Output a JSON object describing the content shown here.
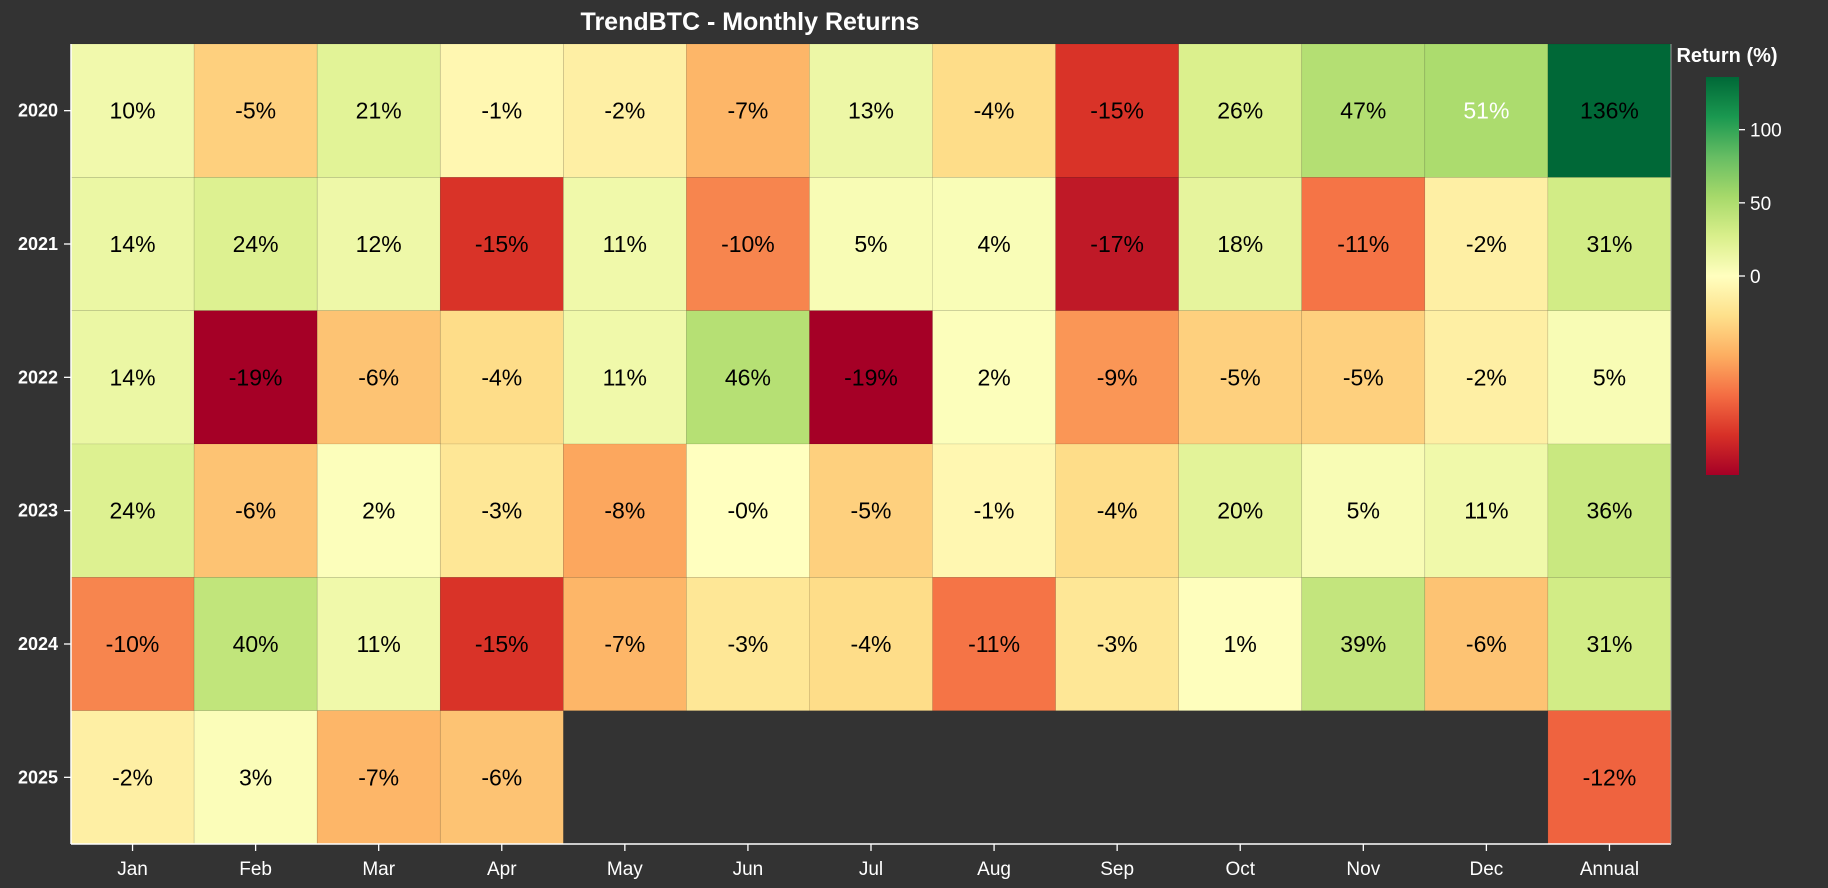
{
  "chart_data": {
    "type": "heatmap",
    "title": "TrendBTC - Monthly Returns",
    "rows": [
      "2020",
      "2021",
      "2022",
      "2023",
      "2024",
      "2025"
    ],
    "columns": [
      "Jan",
      "Feb",
      "Mar",
      "Apr",
      "May",
      "Jun",
      "Jul",
      "Aug",
      "Sep",
      "Oct",
      "Nov",
      "Dec",
      "Annual"
    ],
    "values": [
      [
        10,
        -5,
        21,
        -1,
        -2,
        -7,
        13,
        -4,
        -15,
        26,
        47,
        51,
        136
      ],
      [
        14,
        24,
        12,
        -15,
        11,
        -10,
        5,
        4,
        -17,
        18,
        -11,
        -2,
        31
      ],
      [
        14,
        -19,
        -6,
        -4,
        11,
        46,
        -19,
        2,
        -9,
        -5,
        -5,
        -2,
        5
      ],
      [
        24,
        -6,
        2,
        -3,
        -8,
        0,
        -5,
        -1,
        -4,
        20,
        5,
        11,
        36
      ],
      [
        -10,
        40,
        11,
        -15,
        -7,
        -3,
        -4,
        -11,
        -3,
        1,
        39,
        -6,
        31
      ],
      [
        -2,
        3,
        -7,
        -6,
        null,
        null,
        null,
        null,
        null,
        null,
        null,
        null,
        -12
      ]
    ],
    "labels": [
      [
        "10%",
        "-5%",
        "21%",
        "-1%",
        "-2%",
        "-7%",
        "13%",
        "-4%",
        "-15%",
        "26%",
        "47%",
        "51%",
        "136%"
      ],
      [
        "14%",
        "24%",
        "12%",
        "-15%",
        "11%",
        "-10%",
        "5%",
        "4%",
        "-17%",
        "18%",
        "-11%",
        "-2%",
        "31%"
      ],
      [
        "14%",
        "-19%",
        "-6%",
        "-4%",
        "11%",
        "46%",
        "-19%",
        "2%",
        "-9%",
        "-5%",
        "-5%",
        "-2%",
        "5%"
      ],
      [
        "24%",
        "-6%",
        "2%",
        "-3%",
        "-8%",
        "-0%",
        "-5%",
        "-1%",
        "-4%",
        "20%",
        "5%",
        "11%",
        "36%"
      ],
      [
        "-10%",
        "40%",
        "11%",
        "-15%",
        "-7%",
        "-3%",
        "-4%",
        "-11%",
        "-3%",
        "1%",
        "39%",
        "-6%",
        "31%"
      ],
      [
        "-2%",
        "3%",
        "-7%",
        "-6%",
        null,
        null,
        null,
        null,
        null,
        null,
        null,
        null,
        "-12%"
      ]
    ],
    "colorbar": {
      "title": "Return (%)",
      "range": [
        -19,
        136
      ],
      "ticks": [
        0,
        50,
        100
      ],
      "tick_labels": [
        "0",
        "50",
        "100"
      ],
      "colormap": "RdYlGn"
    },
    "colors": {
      "background": "#333333",
      "text_light": "#ffffff",
      "text_dark": "#000000"
    },
    "legend_position": "right"
  }
}
